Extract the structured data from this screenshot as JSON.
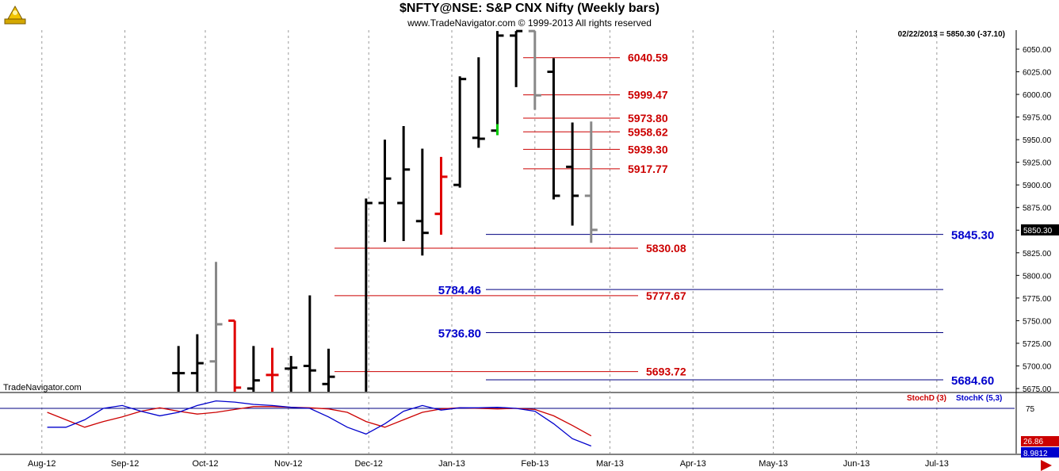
{
  "header": {
    "title": "$NFTY@NSE:  S&P CNX Nifty  (Weekly bars)",
    "copyright": "www.TradeNavigator.com © 1999-2013 All rights reserved",
    "quote": "02/22/2013 = 5850.30 (-37.10)",
    "watermark": "TradeNavigator.com"
  },
  "colors": {
    "up_bar": "#000000",
    "down_bar": "#888888",
    "highlight_red": "#e00000",
    "highlight_green": "#00cc00",
    "red_level": "#cc0000",
    "blue_level": "#000080",
    "blue_label": "#0000cc",
    "stoch_d": "#cc0000",
    "stoch_k": "#0000cc"
  },
  "chart_data": [
    {
      "type": "ohlc",
      "title": "$NFTY@NSE:  S&P CNX Nifty  (Weekly bars)",
      "ylim": [
        5668,
        6070
      ],
      "y_ticks": [
        "6050.00",
        "6025.00",
        "6000.00",
        "5975.00",
        "5950.00",
        "5925.00",
        "5900.00",
        "5875.00",
        "5850.00",
        "5825.00",
        "5800.00",
        "5775.00",
        "5750.00",
        "5725.00",
        "5700.00",
        "5675.00"
      ],
      "x_labels": [
        "Aug-12",
        "Sep-12",
        "Oct-12",
        "Nov-12",
        "Dec-12",
        "Jan-13",
        "Feb-13",
        "Mar-13",
        "Apr-13",
        "May-13",
        "Jun-13",
        "Jul-13"
      ],
      "last_price_label": "5850.30",
      "bars": [
        {
          "date": "2012-09-21",
          "open": 5692,
          "high": 5722,
          "low": 5668,
          "close": 5692,
          "color": "black"
        },
        {
          "date": "2012-09-28",
          "open": 5692,
          "high": 5735,
          "low": 5668,
          "close": 5703,
          "color": "black"
        },
        {
          "date": "2012-10-05",
          "open": 5705,
          "high": 5815,
          "low": 5668,
          "close": 5746,
          "color": "gray"
        },
        {
          "date": "2012-10-12",
          "open": 5750,
          "high": 5750,
          "low": 5668,
          "close": 5676,
          "color": "red"
        },
        {
          "date": "2012-10-19",
          "open": 5675,
          "high": 5722,
          "low": 5668,
          "close": 5684,
          "color": "black"
        },
        {
          "date": "2012-10-26",
          "open": 5690,
          "high": 5720,
          "low": 5668,
          "close": 5690,
          "color": "red"
        },
        {
          "date": "2012-11-02",
          "open": 5697,
          "high": 5711,
          "low": 5668,
          "close": 5698,
          "color": "black"
        },
        {
          "date": "2012-11-09",
          "open": 5700,
          "high": 5778,
          "low": 5668,
          "close": 5695,
          "color": "black"
        },
        {
          "date": "2012-11-16",
          "open": 5680,
          "high": 5719,
          "low": 5668,
          "close": 5688,
          "color": "black"
        },
        {
          "date": "2012-11-30",
          "open": 5668,
          "high": 5885,
          "low": 5668,
          "close": 5880,
          "color": "black"
        },
        {
          "date": "2012-12-07",
          "open": 5880,
          "high": 5950,
          "low": 5837,
          "close": 5907,
          "color": "black"
        },
        {
          "date": "2012-12-14",
          "open": 5880,
          "high": 5965,
          "low": 5838,
          "close": 5917,
          "color": "black"
        },
        {
          "date": "2012-12-21",
          "open": 5860,
          "high": 5940,
          "low": 5822,
          "close": 5847,
          "color": "black"
        },
        {
          "date": "2012-12-28",
          "open": 5868,
          "high": 5931,
          "low": 5845,
          "close": 5909,
          "color": "red"
        },
        {
          "date": "2013-01-04",
          "open": 5900,
          "high": 6020,
          "low": 5897,
          "close": 6017,
          "color": "black"
        },
        {
          "date": "2013-01-11",
          "open": 5952,
          "high": 6041,
          "low": 5941,
          "close": 5951,
          "color": "black"
        },
        {
          "date": "2013-01-18",
          "open": 5960,
          "high": 6070,
          "low": 5955,
          "close": 6065,
          "color": "green"
        },
        {
          "date": "2013-01-25",
          "open": 6065,
          "high": 6070,
          "low": 6008,
          "close": 6070,
          "color": "black"
        },
        {
          "date": "2013-02-01",
          "open": 6070,
          "high": 6070,
          "low": 5983,
          "close": 5999,
          "color": "gray"
        },
        {
          "date": "2013-02-08",
          "open": 6025,
          "high": 6040,
          "low": 5884,
          "close": 5888,
          "color": "black"
        },
        {
          "date": "2013-02-15",
          "open": 5920,
          "high": 5969,
          "low": 5855,
          "close": 5888,
          "color": "black"
        },
        {
          "date": "2013-02-22",
          "open": 5888,
          "high": 5970,
          "low": 5836,
          "close": 5850.3,
          "color": "gray"
        }
      ],
      "levels": [
        {
          "value": 6040.59,
          "label": "6040.59",
          "color": "red",
          "label_side": "right"
        },
        {
          "value": 5999.47,
          "label": "5999.47",
          "color": "red",
          "label_side": "right"
        },
        {
          "value": 5973.8,
          "label": "5973.80",
          "color": "red",
          "label_side": "right"
        },
        {
          "value": 5958.62,
          "label": "5958.62",
          "color": "red",
          "label_side": "right"
        },
        {
          "value": 5939.3,
          "label": "5939.30",
          "color": "red",
          "label_side": "right"
        },
        {
          "value": 5917.77,
          "label": "5917.77",
          "color": "red",
          "label_side": "right"
        },
        {
          "value": 5845.3,
          "label": "5845.30",
          "color": "blue",
          "label_side": "right"
        },
        {
          "value": 5830.08,
          "label": "5830.08",
          "color": "red",
          "label_side": "right"
        },
        {
          "value": 5784.46,
          "label": "5784.46",
          "color": "blue",
          "label_side": "left"
        },
        {
          "value": 5777.67,
          "label": "5777.67",
          "color": "red",
          "label_side": "right"
        },
        {
          "value": 5736.8,
          "label": "5736.80",
          "color": "blue",
          "label_side": "left"
        },
        {
          "value": 5693.72,
          "label": "5693.72",
          "color": "red",
          "label_side": "right"
        },
        {
          "value": 5684.6,
          "label": "5684.60",
          "color": "blue",
          "label_side": "right"
        }
      ]
    },
    {
      "type": "line",
      "title": "",
      "legend": [
        "StochD (3)",
        "StochK (5,3)"
      ],
      "ylim": [
        0,
        100
      ],
      "y_ticks": [
        "75"
      ],
      "reference_line": 75,
      "last_values": [
        "26.86",
        "8.9812"
      ],
      "series": [
        {
          "name": "StochD (3)",
          "x": [
            "2012-08-03",
            "2012-08-10",
            "2012-08-17",
            "2012-08-24",
            "2012-08-31",
            "2012-09-07",
            "2012-09-14",
            "2012-09-21",
            "2012-09-28",
            "2012-10-05",
            "2012-10-12",
            "2012-10-19",
            "2012-10-26",
            "2012-11-02",
            "2012-11-09",
            "2012-11-16",
            "2012-11-23",
            "2012-11-30",
            "2012-12-07",
            "2012-12-14",
            "2012-12-21",
            "2012-12-28",
            "2013-01-04",
            "2013-01-11",
            "2013-01-18",
            "2013-01-25",
            "2013-02-01",
            "2013-02-08",
            "2013-02-15",
            "2013-02-22"
          ],
          "values": [
            68,
            55,
            42,
            52,
            60,
            70,
            76,
            70,
            65,
            68,
            73,
            78,
            78,
            77,
            76,
            74,
            68,
            52,
            42,
            55,
            68,
            74,
            76,
            75,
            74,
            75,
            73,
            62,
            45,
            26.86
          ]
        },
        {
          "name": "StochK (5,3)",
          "x": [
            "2012-08-03",
            "2012-08-10",
            "2012-08-17",
            "2012-08-24",
            "2012-08-31",
            "2012-09-07",
            "2012-09-14",
            "2012-09-21",
            "2012-09-28",
            "2012-10-05",
            "2012-10-12",
            "2012-10-19",
            "2012-10-26",
            "2012-11-02",
            "2012-11-09",
            "2012-11-16",
            "2012-11-23",
            "2012-11-30",
            "2012-12-07",
            "2012-12-14",
            "2012-12-21",
            "2012-12-28",
            "2013-01-04",
            "2013-01-11",
            "2013-01-18",
            "2013-01-25",
            "2013-02-01",
            "2013-02-08",
            "2013-02-15",
            "2013-02-22"
          ],
          "values": [
            42,
            42,
            55,
            75,
            80,
            70,
            62,
            68,
            80,
            88,
            86,
            82,
            80,
            77,
            75,
            60,
            42,
            30,
            48,
            70,
            80,
            72,
            76,
            76,
            77,
            75,
            70,
            48,
            22,
            8.98
          ]
        }
      ]
    }
  ]
}
